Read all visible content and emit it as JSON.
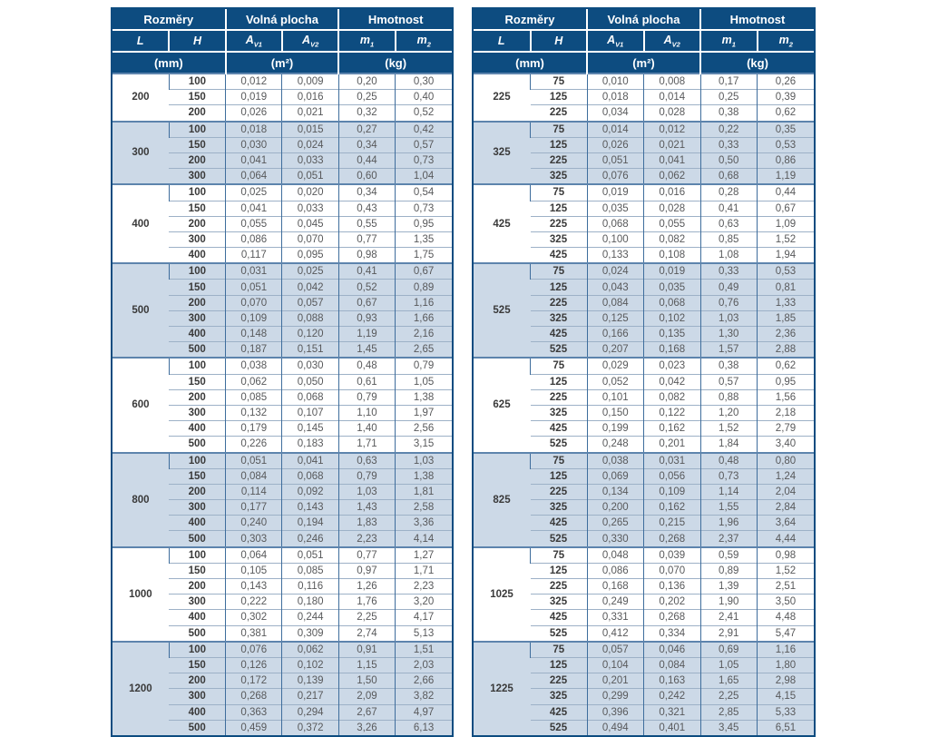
{
  "colors": {
    "header_bg": "#0d4c80",
    "alt_group_bg": "#ccd9e7",
    "value_text": "#58595b",
    "bold_text": "#3a3a3a"
  },
  "header": {
    "group_dimensions": "Rozměry",
    "group_free_area": "Volná plocha",
    "group_weight": "Hmotnost",
    "col_L": "L",
    "col_H": "H",
    "col_av1": {
      "base": "A",
      "sub": "V1"
    },
    "col_av2": {
      "base": "A",
      "sub": "V2"
    },
    "col_m1": {
      "base": "m",
      "sub": "1"
    },
    "col_m2": {
      "base": "m",
      "sub": "2"
    },
    "unit_mm": "(mm)",
    "unit_m2": "(m²)",
    "unit_kg": "(kg)"
  },
  "tables": [
    {
      "id": "left",
      "groups": [
        {
          "L": "200",
          "rows": [
            [
              "100",
              "0,012",
              "0,009",
              "0,20",
              "0,30"
            ],
            [
              "150",
              "0,019",
              "0,016",
              "0,25",
              "0,40"
            ],
            [
              "200",
              "0,026",
              "0,021",
              "0,32",
              "0,52"
            ]
          ]
        },
        {
          "L": "300",
          "rows": [
            [
              "100",
              "0,018",
              "0,015",
              "0,27",
              "0,42"
            ],
            [
              "150",
              "0,030",
              "0,024",
              "0,34",
              "0,57"
            ],
            [
              "200",
              "0,041",
              "0,033",
              "0,44",
              "0,73"
            ],
            [
              "300",
              "0,064",
              "0,051",
              "0,60",
              "1,04"
            ]
          ]
        },
        {
          "L": "400",
          "rows": [
            [
              "100",
              "0,025",
              "0,020",
              "0,34",
              "0,54"
            ],
            [
              "150",
              "0,041",
              "0,033",
              "0,43",
              "0,73"
            ],
            [
              "200",
              "0,055",
              "0,045",
              "0,55",
              "0,95"
            ],
            [
              "300",
              "0,086",
              "0,070",
              "0,77",
              "1,35"
            ],
            [
              "400",
              "0,117",
              "0,095",
              "0,98",
              "1,75"
            ]
          ]
        },
        {
          "L": "500",
          "rows": [
            [
              "100",
              "0,031",
              "0,025",
              "0,41",
              "0,67"
            ],
            [
              "150",
              "0,051",
              "0,042",
              "0,52",
              "0,89"
            ],
            [
              "200",
              "0,070",
              "0,057",
              "0,67",
              "1,16"
            ],
            [
              "300",
              "0,109",
              "0,088",
              "0,93",
              "1,66"
            ],
            [
              "400",
              "0,148",
              "0,120",
              "1,19",
              "2,16"
            ],
            [
              "500",
              "0,187",
              "0,151",
              "1,45",
              "2,65"
            ]
          ]
        },
        {
          "L": "600",
          "rows": [
            [
              "100",
              "0,038",
              "0,030",
              "0,48",
              "0,79"
            ],
            [
              "150",
              "0,062",
              "0,050",
              "0,61",
              "1,05"
            ],
            [
              "200",
              "0,085",
              "0,068",
              "0,79",
              "1,38"
            ],
            [
              "300",
              "0,132",
              "0,107",
              "1,10",
              "1,97"
            ],
            [
              "400",
              "0,179",
              "0,145",
              "1,40",
              "2,56"
            ],
            [
              "500",
              "0,226",
              "0,183",
              "1,71",
              "3,15"
            ]
          ]
        },
        {
          "L": "800",
          "rows": [
            [
              "100",
              "0,051",
              "0,041",
              "0,63",
              "1,03"
            ],
            [
              "150",
              "0,084",
              "0,068",
              "0,79",
              "1,38"
            ],
            [
              "200",
              "0,114",
              "0,092",
              "1,03",
              "1,81"
            ],
            [
              "300",
              "0,177",
              "0,143",
              "1,43",
              "2,58"
            ],
            [
              "400",
              "0,240",
              "0,194",
              "1,83",
              "3,36"
            ],
            [
              "500",
              "0,303",
              "0,246",
              "2,23",
              "4,14"
            ]
          ]
        },
        {
          "L": "1000",
          "rows": [
            [
              "100",
              "0,064",
              "0,051",
              "0,77",
              "1,27"
            ],
            [
              "150",
              "0,105",
              "0,085",
              "0,97",
              "1,71"
            ],
            [
              "200",
              "0,143",
              "0,116",
              "1,26",
              "2,23"
            ],
            [
              "300",
              "0,222",
              "0,180",
              "1,76",
              "3,20"
            ],
            [
              "400",
              "0,302",
              "0,244",
              "2,25",
              "4,17"
            ],
            [
              "500",
              "0,381",
              "0,309",
              "2,74",
              "5,13"
            ]
          ]
        },
        {
          "L": "1200",
          "rows": [
            [
              "100",
              "0,076",
              "0,062",
              "0,91",
              "1,51"
            ],
            [
              "150",
              "0,126",
              "0,102",
              "1,15",
              "2,03"
            ],
            [
              "200",
              "0,172",
              "0,139",
              "1,50",
              "2,66"
            ],
            [
              "300",
              "0,268",
              "0,217",
              "2,09",
              "3,82"
            ],
            [
              "400",
              "0,363",
              "0,294",
              "2,67",
              "4,97"
            ],
            [
              "500",
              "0,459",
              "0,372",
              "3,26",
              "6,13"
            ]
          ]
        }
      ]
    },
    {
      "id": "right",
      "groups": [
        {
          "L": "225",
          "rows": [
            [
              "75",
              "0,010",
              "0,008",
              "0,17",
              "0,26"
            ],
            [
              "125",
              "0,018",
              "0,014",
              "0,25",
              "0,39"
            ],
            [
              "225",
              "0,034",
              "0,028",
              "0,38",
              "0,62"
            ]
          ]
        },
        {
          "L": "325",
          "rows": [
            [
              "75",
              "0,014",
              "0,012",
              "0,22",
              "0,35"
            ],
            [
              "125",
              "0,026",
              "0,021",
              "0,33",
              "0,53"
            ],
            [
              "225",
              "0,051",
              "0,041",
              "0,50",
              "0,86"
            ],
            [
              "325",
              "0,076",
              "0,062",
              "0,68",
              "1,19"
            ]
          ]
        },
        {
          "L": "425",
          "rows": [
            [
              "75",
              "0,019",
              "0,016",
              "0,28",
              "0,44"
            ],
            [
              "125",
              "0,035",
              "0,028",
              "0,41",
              "0,67"
            ],
            [
              "225",
              "0,068",
              "0,055",
              "0,63",
              "1,09"
            ],
            [
              "325",
              "0,100",
              "0,082",
              "0,85",
              "1,52"
            ],
            [
              "425",
              "0,133",
              "0,108",
              "1,08",
              "1,94"
            ]
          ]
        },
        {
          "L": "525",
          "rows": [
            [
              "75",
              "0,024",
              "0,019",
              "0,33",
              "0,53"
            ],
            [
              "125",
              "0,043",
              "0,035",
              "0,49",
              "0,81"
            ],
            [
              "225",
              "0,084",
              "0,068",
              "0,76",
              "1,33"
            ],
            [
              "325",
              "0,125",
              "0,102",
              "1,03",
              "1,85"
            ],
            [
              "425",
              "0,166",
              "0,135",
              "1,30",
              "2,36"
            ],
            [
              "525",
              "0,207",
              "0,168",
              "1,57",
              "2,88"
            ]
          ]
        },
        {
          "L": "625",
          "rows": [
            [
              "75",
              "0,029",
              "0,023",
              "0,38",
              "0,62"
            ],
            [
              "125",
              "0,052",
              "0,042",
              "0,57",
              "0,95"
            ],
            [
              "225",
              "0,101",
              "0,082",
              "0,88",
              "1,56"
            ],
            [
              "325",
              "0,150",
              "0,122",
              "1,20",
              "2,18"
            ],
            [
              "425",
              "0,199",
              "0,162",
              "1,52",
              "2,79"
            ],
            [
              "525",
              "0,248",
              "0,201",
              "1,84",
              "3,40"
            ]
          ]
        },
        {
          "L": "825",
          "rows": [
            [
              "75",
              "0,038",
              "0,031",
              "0,48",
              "0,80"
            ],
            [
              "125",
              "0,069",
              "0,056",
              "0,73",
              "1,24"
            ],
            [
              "225",
              "0,134",
              "0,109",
              "1,14",
              "2,04"
            ],
            [
              "325",
              "0,200",
              "0,162",
              "1,55",
              "2,84"
            ],
            [
              "425",
              "0,265",
              "0,215",
              "1,96",
              "3,64"
            ],
            [
              "525",
              "0,330",
              "0,268",
              "2,37",
              "4,44"
            ]
          ]
        },
        {
          "L": "1025",
          "rows": [
            [
              "75",
              "0,048",
              "0,039",
              "0,59",
              "0,98"
            ],
            [
              "125",
              "0,086",
              "0,070",
              "0,89",
              "1,52"
            ],
            [
              "225",
              "0,168",
              "0,136",
              "1,39",
              "2,51"
            ],
            [
              "325",
              "0,249",
              "0,202",
              "1,90",
              "3,50"
            ],
            [
              "425",
              "0,331",
              "0,268",
              "2,41",
              "4,48"
            ],
            [
              "525",
              "0,412",
              "0,334",
              "2,91",
              "5,47"
            ]
          ]
        },
        {
          "L": "1225",
          "rows": [
            [
              "75",
              "0,057",
              "0,046",
              "0,69",
              "1,16"
            ],
            [
              "125",
              "0,104",
              "0,084",
              "1,05",
              "1,80"
            ],
            [
              "225",
              "0,201",
              "0,163",
              "1,65",
              "2,98"
            ],
            [
              "325",
              "0,299",
              "0,242",
              "2,25",
              "4,15"
            ],
            [
              "425",
              "0,396",
              "0,321",
              "2,85",
              "5,33"
            ],
            [
              "525",
              "0,494",
              "0,401",
              "3,45",
              "6,51"
            ]
          ]
        }
      ]
    }
  ]
}
